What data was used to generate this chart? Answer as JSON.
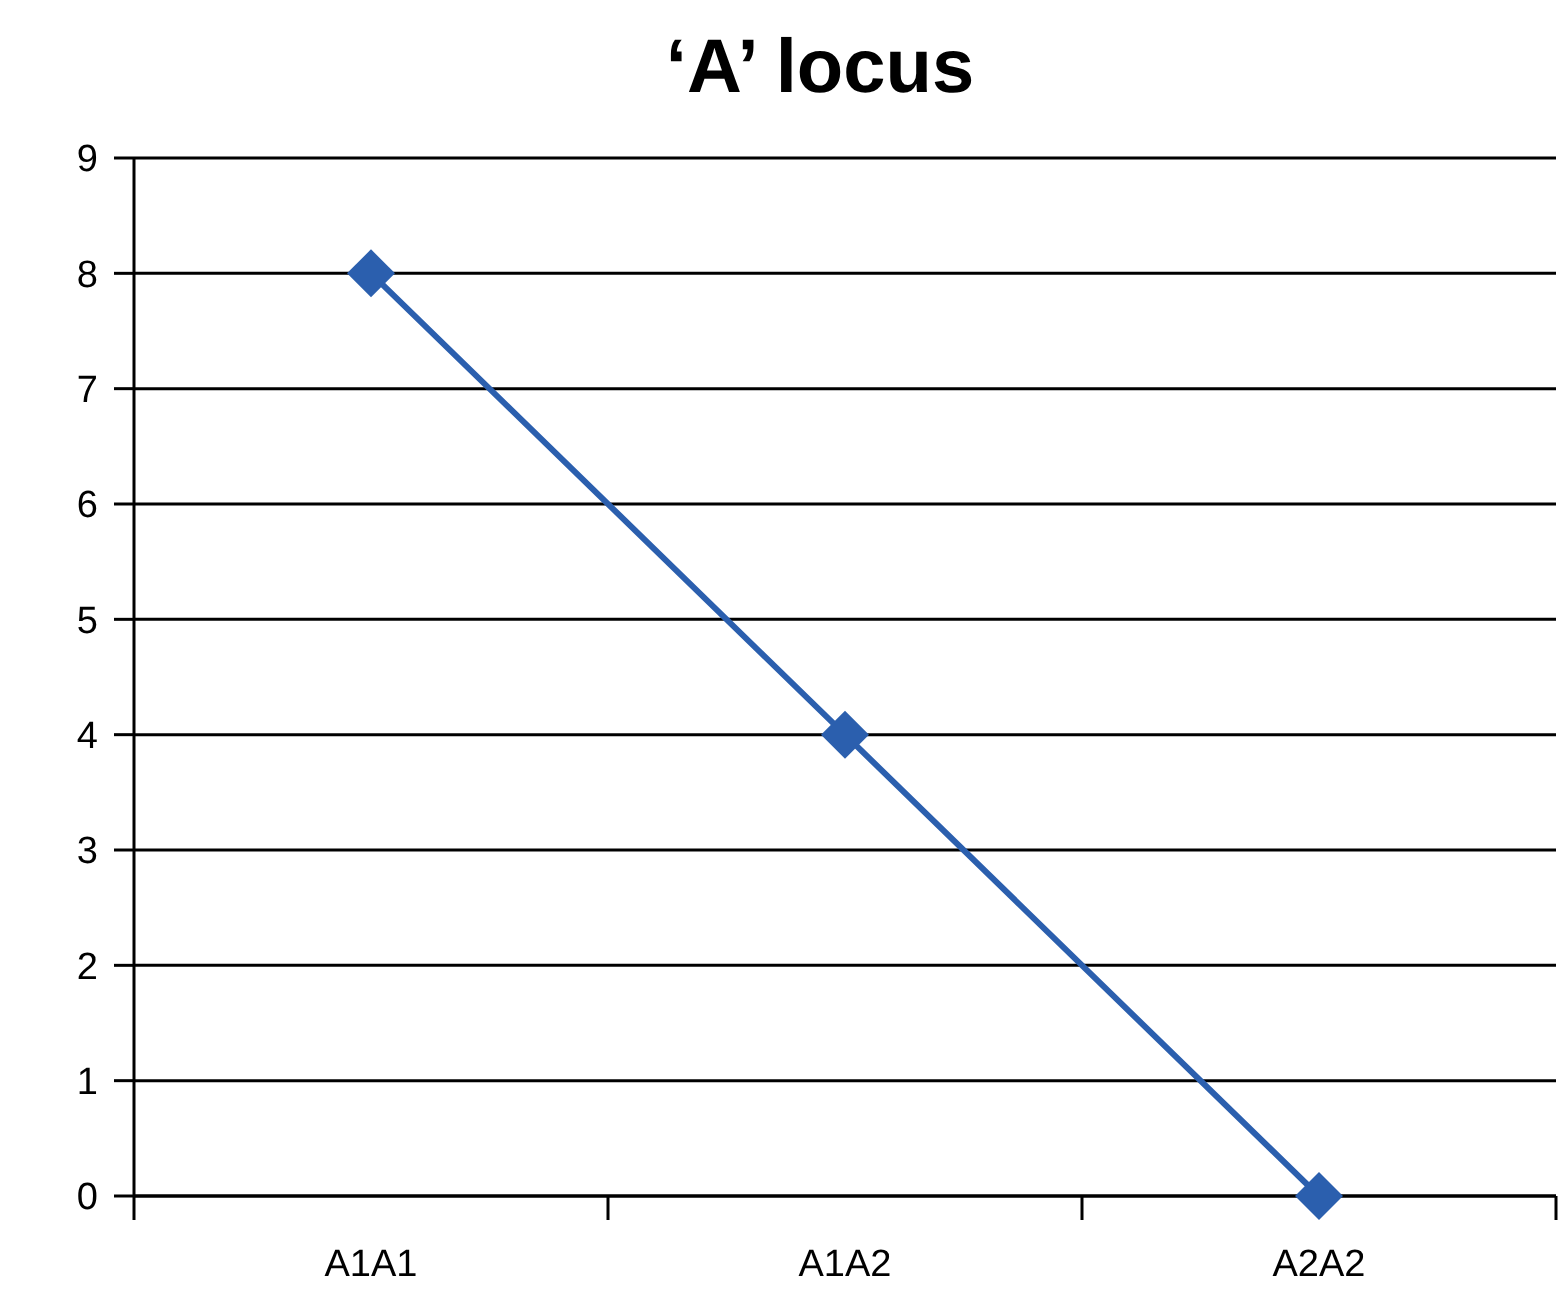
{
  "chart_data": {
    "type": "line",
    "title": "‘A’ locus",
    "categories": [
      "A1A1",
      "A1A2",
      "A2A2"
    ],
    "series": [
      {
        "color": "#2b5fae",
        "values": [
          8,
          4,
          0
        ]
      }
    ],
    "ylim": [
      0,
      9
    ],
    "yticks": [
      0,
      1,
      2,
      3,
      4,
      5,
      6,
      7,
      8,
      9
    ],
    "grid": "y",
    "marker": "diamond",
    "line_style": "solid"
  }
}
